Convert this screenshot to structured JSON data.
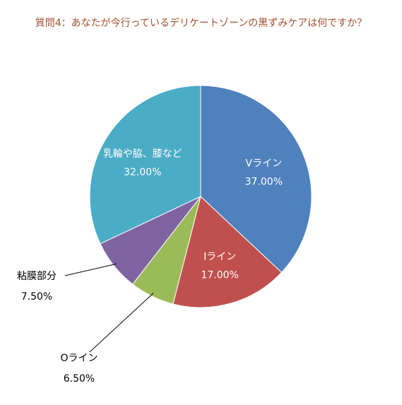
{
  "chart_data": {
    "type": "pie",
    "title": "質問4：あなたが今行っているデリケートゾーンの黒ずみケアは何ですか？",
    "slices": [
      {
        "label": "Vライン",
        "value": 37.0,
        "value_label": "37.00%",
        "color": "#4f81bd"
      },
      {
        "label": "Iライン",
        "value": 17.0,
        "value_label": "17.00%",
        "color": "#c0504d"
      },
      {
        "label": "Oライン",
        "value": 6.5,
        "value_label": "6.50%",
        "color": "#9bbb59"
      },
      {
        "label": "粘膜部分",
        "value": 7.5,
        "value_label": "7.50%",
        "color": "#8064a2"
      },
      {
        "label": "乳輪や脇、膝など",
        "value": 32.0,
        "value_label": "32.00%",
        "color": "#4bacc6"
      }
    ],
    "start_angle": "12 o'clock",
    "direction": "clockwise",
    "legend": "none",
    "title_color": "#a0522d",
    "inside_label_color": "#ffffff",
    "outside_label_color": "#000000"
  }
}
